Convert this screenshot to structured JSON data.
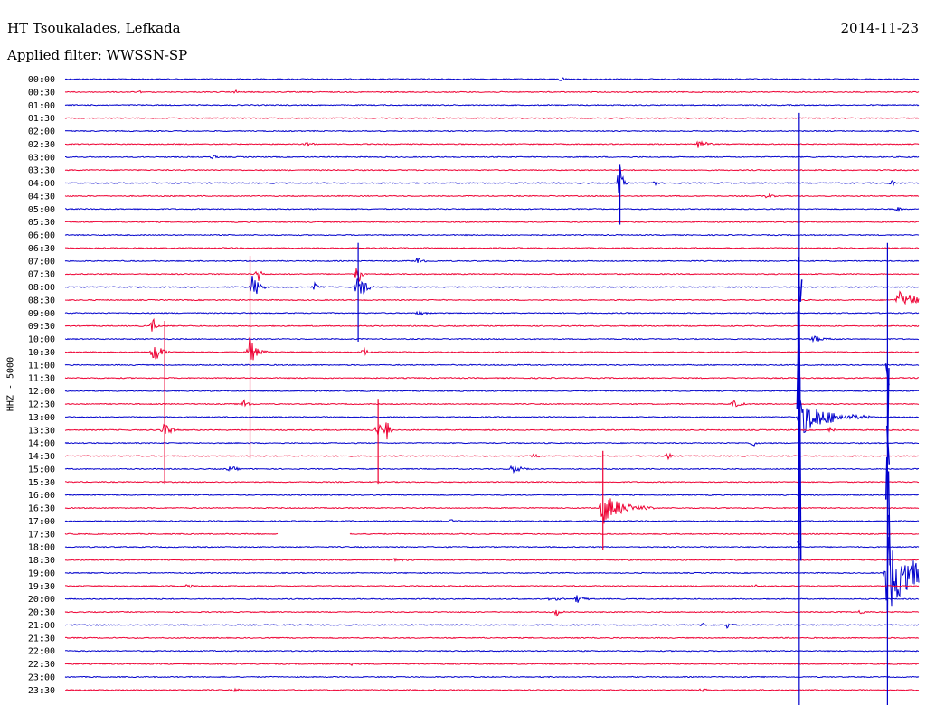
{
  "header": {
    "station": "HT Tsoukalades, Lefkada",
    "date": "2014-11-23",
    "filter_label": "Applied filter: WWSSN-SP"
  },
  "chart_data": {
    "type": "seismogram",
    "title": "HT Tsoukalades, Lefkada",
    "date": "2014-11-23",
    "filter": "WWSSN-SP",
    "ylabel": "HHZ - 5000",
    "row_interval_minutes": 30,
    "rows": [
      "00:00",
      "00:30",
      "01:00",
      "01:30",
      "02:00",
      "02:30",
      "03:00",
      "03:30",
      "04:00",
      "04:30",
      "05:00",
      "05:30",
      "06:00",
      "06:30",
      "07:00",
      "07:30",
      "08:00",
      "08:30",
      "09:00",
      "09:30",
      "10:00",
      "10:30",
      "11:00",
      "11:30",
      "12:00",
      "12:30",
      "13:00",
      "13:30",
      "14:00",
      "14:30",
      "15:00",
      "15:30",
      "16:00",
      "16:30",
      "17:00",
      "17:30",
      "18:00",
      "18:30",
      "19:00",
      "19:30",
      "20:00",
      "20:30",
      "21:00",
      "21:30",
      "22:00",
      "22:30",
      "23:00",
      "23:30"
    ],
    "colors": [
      "#0000cc",
      "#ee0033"
    ],
    "gaps": [
      {
        "row": "17:30",
        "from_min": 7.5,
        "to_min": 10.0
      }
    ],
    "events": [
      {
        "row": "00:00",
        "t": 17.4,
        "amp": 0.4,
        "dur": 0.5
      },
      {
        "row": "00:30",
        "t": 2.6,
        "amp": 0.3,
        "dur": 0.2
      },
      {
        "row": "00:30",
        "t": 6.0,
        "amp": 0.3,
        "dur": 0.2
      },
      {
        "row": "02:30",
        "t": 8.5,
        "amp": 0.3,
        "dur": 0.6
      },
      {
        "row": "02:30",
        "t": 22.3,
        "amp": 0.8,
        "dur": 0.6
      },
      {
        "row": "03:00",
        "t": 5.2,
        "amp": 0.5,
        "dur": 0.4
      },
      {
        "row": "04:00",
        "t": 19.5,
        "amp": 2.7,
        "dur": 0.3
      },
      {
        "row": "04:00",
        "t": 20.7,
        "amp": 0.6,
        "dur": 0.2
      },
      {
        "row": "04:00",
        "t": 29.1,
        "amp": 0.6,
        "dur": 0.3
      },
      {
        "row": "04:30",
        "t": 24.7,
        "amp": 0.7,
        "dur": 0.3
      },
      {
        "row": "05:00",
        "t": 29.3,
        "amp": 0.5,
        "dur": 0.3
      },
      {
        "row": "07:00",
        "t": 12.4,
        "amp": 0.8,
        "dur": 0.4
      },
      {
        "row": "07:30",
        "t": 6.8,
        "amp": 1.5,
        "dur": 0.2
      },
      {
        "row": "07:30",
        "t": 10.3,
        "amp": 2.3,
        "dur": 0.2
      },
      {
        "row": "08:00",
        "t": 6.6,
        "amp": 2.1,
        "dur": 0.6
      },
      {
        "row": "08:00",
        "t": 8.8,
        "amp": 0.7,
        "dur": 0.3
      },
      {
        "row": "08:00",
        "t": 10.3,
        "amp": 2.4,
        "dur": 0.6
      },
      {
        "row": "08:30",
        "t": 29.3,
        "amp": 1.6,
        "dur": 1.5
      },
      {
        "row": "09:00",
        "t": 12.4,
        "amp": 0.6,
        "dur": 0.5
      },
      {
        "row": "09:30",
        "t": 3.1,
        "amp": 1.2,
        "dur": 0.3
      },
      {
        "row": "10:30",
        "t": 3.1,
        "amp": 2.2,
        "dur": 0.6
      },
      {
        "row": "10:30",
        "t": 6.5,
        "amp": 2.7,
        "dur": 0.6
      },
      {
        "row": "10:30",
        "t": 10.5,
        "amp": 0.6,
        "dur": 0.5
      },
      {
        "row": "12:30",
        "t": 6.3,
        "amp": 0.8,
        "dur": 0.4
      },
      {
        "row": "12:30",
        "t": 23.5,
        "amp": 0.6,
        "dur": 0.6
      },
      {
        "row": "13:30",
        "t": 3.5,
        "amp": 1.7,
        "dur": 0.5
      },
      {
        "row": "13:30",
        "t": 11.0,
        "amp": 1.6,
        "dur": 0.3
      },
      {
        "row": "13:30",
        "t": 11.3,
        "amp": 1.7,
        "dur": 0.3
      },
      {
        "row": "13:30",
        "t": 26.9,
        "amp": 0.5,
        "dur": 0.4
      },
      {
        "row": "14:00",
        "t": 24.2,
        "amp": 0.7,
        "dur": 0.2
      },
      {
        "row": "14:30",
        "t": 16.5,
        "amp": 0.5,
        "dur": 0.3
      },
      {
        "row": "14:30",
        "t": 21.2,
        "amp": 0.6,
        "dur": 0.3
      },
      {
        "row": "15:00",
        "t": 5.8,
        "amp": 0.5,
        "dur": 0.6
      },
      {
        "row": "15:00",
        "t": 15.7,
        "amp": 0.6,
        "dur": 1.2
      },
      {
        "row": "16:30",
        "t": 18.9,
        "amp": 2.6,
        "dur": 1.8
      },
      {
        "row": "17:00",
        "t": 13.6,
        "amp": 0.5,
        "dur": 0.3
      },
      {
        "row": "18:30",
        "t": 11.6,
        "amp": 0.3,
        "dur": 0.6
      },
      {
        "row": "19:30",
        "t": 4.3,
        "amp": 0.5,
        "dur": 0.4
      },
      {
        "row": "19:30",
        "t": 24.2,
        "amp": 0.3,
        "dur": 0.3
      },
      {
        "row": "20:00",
        "t": 17.1,
        "amp": 0.4,
        "dur": 0.6
      },
      {
        "row": "20:00",
        "t": 18.0,
        "amp": 0.7,
        "dur": 0.6
      },
      {
        "row": "20:30",
        "t": 17.3,
        "amp": 0.6,
        "dur": 0.4
      },
      {
        "row": "20:30",
        "t": 28.0,
        "amp": 0.4,
        "dur": 0.2
      },
      {
        "row": "21:00",
        "t": 22.4,
        "amp": 0.8,
        "dur": 0.3
      },
      {
        "row": "21:00",
        "t": 23.3,
        "amp": 0.9,
        "dur": 0.3
      },
      {
        "row": "22:30",
        "t": 10.1,
        "amp": 0.3,
        "dur": 0.3
      },
      {
        "row": "23:30",
        "t": 6.0,
        "amp": 0.4,
        "dur": 0.3
      },
      {
        "row": "23:30",
        "t": 22.4,
        "amp": 0.5,
        "dur": 0.4
      },
      {
        "row": "13:00",
        "t": 25.8,
        "amp": 3.0,
        "dur": 2.5
      },
      {
        "row": "10:00",
        "t": 26.3,
        "amp": 0.6,
        "dur": 1.0
      },
      {
        "row": "19:00",
        "t": 28.9,
        "amp": 6.5,
        "dur": 2.2
      }
    ],
    "spikes": [
      {
        "row": "02:00",
        "t": 25.8,
        "top_row": "01:30",
        "bottom_row": "23:30"
      },
      {
        "row": "19:00",
        "t": 28.9,
        "top_row": "06:30",
        "bottom_row": "23:30"
      },
      {
        "row": "04:00",
        "t": 19.5,
        "top_row": "03:30",
        "bottom_row": "05:00"
      },
      {
        "row": "10:30",
        "t": 6.5,
        "top_row": "07:00",
        "bottom_row": "14:00"
      },
      {
        "row": "10:30",
        "t": 3.5,
        "top_row": "09:30",
        "bottom_row": "15:00"
      },
      {
        "row": "08:00",
        "t": 10.3,
        "top_row": "06:30",
        "bottom_row": "09:30"
      },
      {
        "row": "16:30",
        "t": 18.9,
        "top_row": "14:30",
        "bottom_row": "17:30"
      },
      {
        "row": "13:30",
        "t": 11.0,
        "top_row": "12:30",
        "bottom_row": "15:00"
      }
    ]
  }
}
